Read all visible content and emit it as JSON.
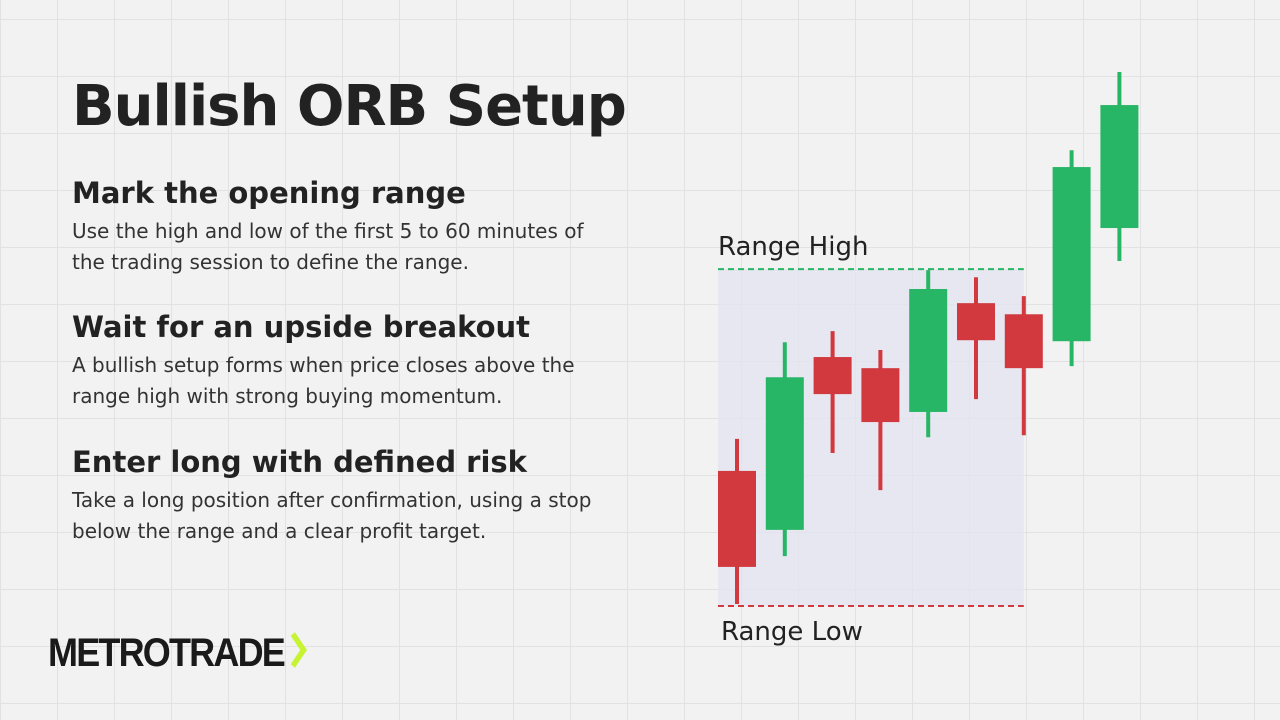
{
  "header": {
    "title": "Bullish ORB Setup"
  },
  "steps": [
    {
      "heading": "Mark the opening range",
      "text": "Use the high and low of the first 5 to 60 minutes of the trading session to define the range."
    },
    {
      "heading": "Wait for an upside breakout",
      "text": "A bullish setup forms when price closes above the range high with strong buying momentum."
    },
    {
      "heading": "Enter long with defined risk",
      "text": "Take a long position after confirmation, using a stop below the range and a clear profit target."
    }
  ],
  "brand": "METROTRADE",
  "chart_data": {
    "type": "candlestick",
    "categories": [
      null,
      null,
      null,
      null,
      null,
      null,
      null,
      null,
      null
    ],
    "open": [
      40.1,
      22.6,
      73.9,
      70.6,
      57.6,
      89.9,
      86.6,
      78.6,
      112.2
    ],
    "high": [
      49.6,
      78.3,
      81.6,
      76.0,
      99.7,
      97.6,
      92.0,
      135.3,
      158.5
    ],
    "low": [
      0.6,
      14.8,
      45.4,
      34.4,
      50.1,
      61.4,
      50.7,
      71.2,
      102.4
    ],
    "close": [
      11.6,
      67.9,
      62.9,
      54.6,
      94.1,
      78.9,
      70.6,
      130.3,
      148.7
    ],
    "up_color": "#27b665",
    "down_color": "#d1393f",
    "ylim": [
      0,
      160
    ],
    "range_high": {
      "label": "Range High",
      "value": 100,
      "color": "#27b665"
    },
    "range_low": {
      "label": "Range Low",
      "value": 0,
      "color": "#d1393f"
    },
    "range_fill": "#e3e3f0"
  }
}
